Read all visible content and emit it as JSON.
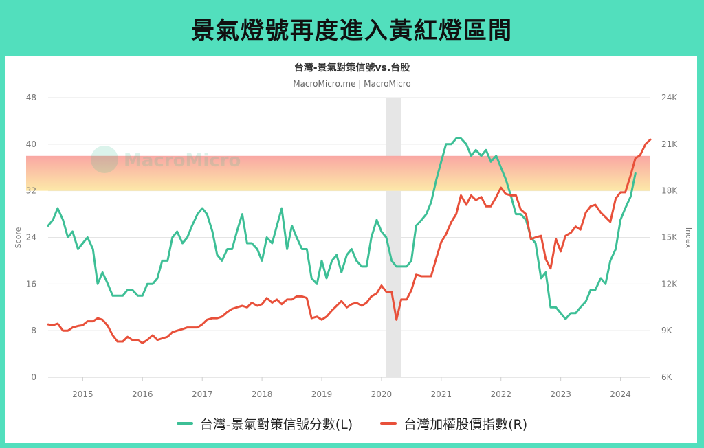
{
  "banner": {
    "title": "景氣燈號再度進入黃紅燈區間"
  },
  "colors": {
    "background": "#52dfbd",
    "score_line": "#3dbf96",
    "index_line": "#e8503a",
    "band_top": "#f9a7a3",
    "band_bottom": "#fde9a8",
    "shade": "#e6e6e6",
    "grid": "#e4e4e4",
    "axis_text": "#777777"
  },
  "watermark": {
    "text": "MacroMicro"
  },
  "chart_data": {
    "type": "line",
    "title": "台灣-景氣對策信號vs.台股",
    "subtitle": "MacroMicro.me | MacroMicro",
    "ylabel": "Score",
    "y2label": "Index",
    "ylim": [
      0,
      48
    ],
    "y2lim": [
      6000,
      24000
    ],
    "yticks": [
      0,
      8,
      16,
      24,
      32,
      40,
      48
    ],
    "yticklabels": [
      "0",
      "8",
      "16",
      "24",
      "32",
      "40",
      "48"
    ],
    "y2ticks": [
      6000,
      9000,
      12000,
      15000,
      18000,
      21000,
      24000
    ],
    "y2ticklabels": [
      "6K",
      "9K",
      "12K",
      "15K",
      "18K",
      "21K",
      "24K"
    ],
    "xlim": [
      2014.42,
      2024.5
    ],
    "xticks": [
      2015,
      2016,
      2017,
      2018,
      2019,
      2020,
      2021,
      2022,
      2023,
      2024
    ],
    "xticklabels": [
      "2015",
      "2016",
      "2017",
      "2018",
      "2019",
      "2020",
      "2021",
      "2022",
      "2023",
      "2024"
    ],
    "grid": true,
    "legend_position": "bottom",
    "shaded_region": [
      2020.08,
      2020.33
    ],
    "highlight_band": [
      32,
      38
    ],
    "series": [
      {
        "name": "台灣-景氣對策信號分數(L)",
        "axis": "left",
        "x": [
          2014.42,
          2014.5,
          2014.58,
          2014.67,
          2014.75,
          2014.83,
          2014.92,
          2015.0,
          2015.08,
          2015.17,
          2015.25,
          2015.33,
          2015.42,
          2015.5,
          2015.58,
          2015.67,
          2015.75,
          2015.83,
          2015.92,
          2016.0,
          2016.08,
          2016.17,
          2016.25,
          2016.33,
          2016.42,
          2016.5,
          2016.58,
          2016.67,
          2016.75,
          2016.83,
          2016.92,
          2017.0,
          2017.08,
          2017.17,
          2017.25,
          2017.33,
          2017.42,
          2017.5,
          2017.58,
          2017.67,
          2017.75,
          2017.83,
          2017.92,
          2018.0,
          2018.08,
          2018.17,
          2018.25,
          2018.33,
          2018.42,
          2018.5,
          2018.58,
          2018.67,
          2018.75,
          2018.83,
          2018.92,
          2019.0,
          2019.08,
          2019.17,
          2019.25,
          2019.33,
          2019.42,
          2019.5,
          2019.58,
          2019.67,
          2019.75,
          2019.83,
          2019.92,
          2020.0,
          2020.08,
          2020.17,
          2020.25,
          2020.33,
          2020.42,
          2020.5,
          2020.58,
          2020.67,
          2020.75,
          2020.83,
          2020.92,
          2021.0,
          2021.08,
          2021.17,
          2021.25,
          2021.33,
          2021.42,
          2021.5,
          2021.58,
          2021.67,
          2021.75,
          2021.83,
          2021.92,
          2022.0,
          2022.08,
          2022.17,
          2022.25,
          2022.33,
          2022.42,
          2022.5,
          2022.58,
          2022.67,
          2022.75,
          2022.83,
          2022.92,
          2023.0,
          2023.08,
          2023.17,
          2023.25,
          2023.33,
          2023.42,
          2023.5,
          2023.58,
          2023.67,
          2023.75,
          2023.83,
          2023.92,
          2024.0,
          2024.08,
          2024.17,
          2024.25
        ],
        "values": [
          26,
          27,
          29,
          27,
          24,
          25,
          22,
          23,
          24,
          22,
          16,
          18,
          16,
          14,
          14,
          14,
          15,
          15,
          14,
          14,
          16,
          16,
          17,
          20,
          20,
          24,
          25,
          23,
          24,
          26,
          28,
          29,
          28,
          25,
          21,
          20,
          22,
          22,
          25,
          28,
          23,
          23,
          22,
          20,
          24,
          23,
          26,
          29,
          22,
          26,
          24,
          22,
          22,
          17,
          16,
          20,
          17,
          20,
          21,
          18,
          21,
          22,
          20,
          19,
          19,
          24,
          27,
          25,
          24,
          20,
          19,
          19,
          19,
          20,
          26,
          27,
          28,
          30,
          34,
          37,
          40,
          40,
          41,
          41,
          40,
          38,
          39,
          38,
          39,
          37,
          38,
          36,
          34,
          31,
          28,
          28,
          27,
          24,
          23,
          17,
          18,
          12,
          12,
          11,
          10,
          11,
          11,
          12,
          13,
          15,
          15,
          17,
          16,
          20,
          22,
          27,
          29,
          31,
          35
        ]
      },
      {
        "name": "台灣加權股價指數(R)",
        "axis": "right",
        "x": [
          2014.42,
          2014.5,
          2014.58,
          2014.67,
          2014.75,
          2014.83,
          2014.92,
          2015.0,
          2015.08,
          2015.17,
          2015.25,
          2015.33,
          2015.42,
          2015.5,
          2015.58,
          2015.67,
          2015.75,
          2015.83,
          2015.92,
          2016.0,
          2016.08,
          2016.17,
          2016.25,
          2016.33,
          2016.42,
          2016.5,
          2016.58,
          2016.67,
          2016.75,
          2016.83,
          2016.92,
          2017.0,
          2017.08,
          2017.17,
          2017.25,
          2017.33,
          2017.42,
          2017.5,
          2017.58,
          2017.67,
          2017.75,
          2017.83,
          2017.92,
          2018.0,
          2018.08,
          2018.17,
          2018.25,
          2018.33,
          2018.42,
          2018.5,
          2018.58,
          2018.67,
          2018.75,
          2018.83,
          2018.92,
          2019.0,
          2019.08,
          2019.17,
          2019.25,
          2019.33,
          2019.42,
          2019.5,
          2019.58,
          2019.67,
          2019.75,
          2019.83,
          2019.92,
          2020.0,
          2020.08,
          2020.17,
          2020.25,
          2020.33,
          2020.42,
          2020.5,
          2020.58,
          2020.67,
          2020.75,
          2020.83,
          2020.92,
          2021.0,
          2021.08,
          2021.17,
          2021.25,
          2021.33,
          2021.42,
          2021.5,
          2021.58,
          2021.67,
          2021.75,
          2021.83,
          2021.92,
          2022.0,
          2022.08,
          2022.17,
          2022.25,
          2022.33,
          2022.42,
          2022.5,
          2022.58,
          2022.67,
          2022.75,
          2022.83,
          2022.92,
          2023.0,
          2023.08,
          2023.17,
          2023.25,
          2023.33,
          2023.42,
          2023.5,
          2023.58,
          2023.67,
          2023.75,
          2023.83,
          2023.92,
          2024.0,
          2024.08,
          2024.17,
          2024.25,
          2024.33,
          2024.42,
          2024.5
        ],
        "values": [
          9400,
          9350,
          9450,
          9000,
          9000,
          9200,
          9300,
          9350,
          9600,
          9600,
          9800,
          9700,
          9300,
          8700,
          8300,
          8300,
          8600,
          8400,
          8400,
          8200,
          8400,
          8700,
          8400,
          8500,
          8600,
          8900,
          9000,
          9100,
          9200,
          9200,
          9200,
          9400,
          9700,
          9800,
          9800,
          9900,
          10200,
          10400,
          10500,
          10600,
          10500,
          10800,
          10600,
          10700,
          11100,
          10800,
          11000,
          10700,
          11000,
          11000,
          11200,
          11200,
          11100,
          9800,
          9900,
          9700,
          9900,
          10300,
          10600,
          10900,
          10500,
          10700,
          10800,
          10600,
          10800,
          11200,
          11400,
          11900,
          11500,
          11500,
          9700,
          11000,
          11000,
          11600,
          12600,
          12500,
          12500,
          12500,
          13700,
          14700,
          15200,
          16000,
          16500,
          17700,
          17100,
          17700,
          17400,
          17600,
          17000,
          17000,
          17600,
          18200,
          17800,
          17700,
          17700,
          16800,
          16500,
          14900,
          15000,
          15100,
          13600,
          13000,
          14900,
          14100,
          15100,
          15300,
          15700,
          15500,
          16600,
          17000,
          17100,
          16600,
          16300,
          16000,
          17500,
          17900,
          17900,
          19000,
          20100,
          20300,
          21000,
          21300
        ]
      }
    ]
  }
}
